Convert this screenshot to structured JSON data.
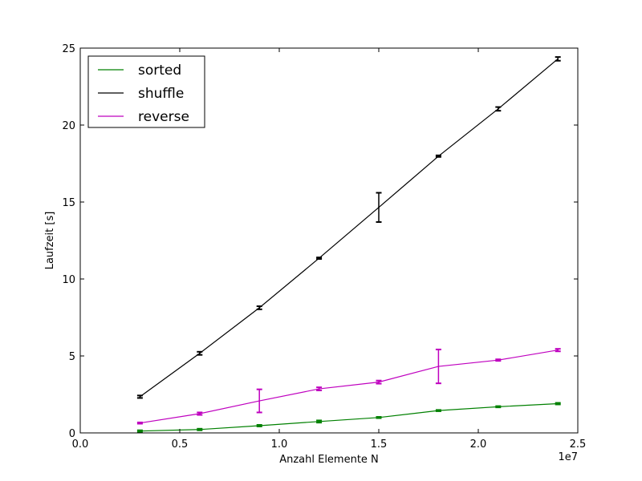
{
  "chart_data": {
    "type": "line",
    "xlabel": "Anzahl Elemente N",
    "ylabel": "Laufzeit [s]",
    "x_multiplier_label": "1e7",
    "xlim": [
      0.0,
      2.5
    ],
    "ylim": [
      0,
      25
    ],
    "x_ticks": [
      "0.0",
      "0.5",
      "1.0",
      "1.5",
      "2.0",
      "2.5"
    ],
    "y_ticks": [
      "0",
      "5",
      "10",
      "15",
      "20",
      "25"
    ],
    "legend_position": "upper-left",
    "grid": false,
    "x": [
      0.3,
      0.6,
      0.9,
      1.2,
      1.5,
      1.8,
      2.1,
      2.4
    ],
    "series": [
      {
        "name": "sorted",
        "color": "#008000",
        "values": [
          0.12,
          0.22,
          0.47,
          0.74,
          1.0,
          1.45,
          1.7,
          1.9
        ],
        "errors": [
          0.05,
          0.05,
          0.05,
          0.07,
          0.04,
          0.04,
          0.04,
          0.05
        ]
      },
      {
        "name": "shuffle",
        "color": "#000000",
        "values": [
          2.35,
          5.17,
          8.13,
          11.35,
          14.65,
          17.98,
          21.05,
          24.3
        ],
        "errors": [
          0.08,
          0.1,
          0.1,
          0.05,
          0.95,
          0.05,
          0.12,
          0.12
        ]
      },
      {
        "name": "reverse",
        "color": "#bf00bf",
        "values": [
          0.64,
          1.25,
          2.08,
          2.86,
          3.3,
          4.32,
          4.73,
          5.38
        ],
        "errors": [
          0.04,
          0.08,
          0.75,
          0.1,
          0.1,
          1.1,
          0.05,
          0.08
        ]
      }
    ]
  }
}
